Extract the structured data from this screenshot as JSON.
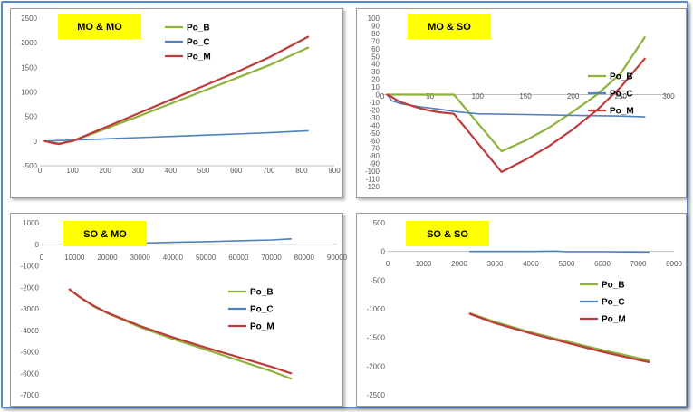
{
  "colors": {
    "Po_B": "#8db33d",
    "Po_C": "#4f81bd",
    "Po_M": "#be3b3b",
    "frame": "#5a8ac8",
    "title_bg": "#ffff00"
  },
  "chart_data": [
    {
      "type": "line",
      "title": "MO & MO",
      "xlim": [
        0,
        900
      ],
      "ylim": [
        -500,
        2500
      ],
      "xticks": [
        0,
        100,
        200,
        300,
        400,
        500,
        600,
        700,
        800,
        900
      ],
      "yticks": [
        -500,
        0,
        500,
        1000,
        1500,
        2000,
        2500
      ],
      "xtick_labels": [
        "0",
        "100",
        "200",
        "300",
        "400",
        "500",
        "600",
        "700",
        "800",
        "900"
      ],
      "ytick_labels": [
        "-500",
        "0",
        "500",
        "1000",
        "1500",
        "2000",
        "2500"
      ],
      "legend": [
        "Po_B",
        "Po_C",
        "Po_M"
      ],
      "series": [
        {
          "name": "Po_B",
          "x": [
            15,
            40,
            60,
            80,
            100,
            200,
            300,
            400,
            500,
            600,
            700,
            820
          ],
          "y": [
            0,
            -30,
            -50,
            -20,
            0,
            250,
            500,
            760,
            1020,
            1280,
            1540,
            1900
          ]
        },
        {
          "name": "Po_C",
          "x": [
            15,
            100,
            200,
            300,
            400,
            500,
            600,
            700,
            820
          ],
          "y": [
            0,
            20,
            45,
            70,
            95,
            120,
            145,
            170,
            210
          ]
        },
        {
          "name": "Po_M",
          "x": [
            15,
            40,
            60,
            80,
            100,
            200,
            300,
            400,
            500,
            600,
            700,
            820
          ],
          "y": [
            0,
            -40,
            -60,
            -25,
            0,
            280,
            560,
            840,
            1120,
            1400,
            1700,
            2120
          ]
        }
      ]
    },
    {
      "type": "line",
      "title": "MO & SO",
      "xlim": [
        0,
        300
      ],
      "ylim": [
        -120,
        100
      ],
      "xticks": [
        0,
        50,
        100,
        150,
        200,
        250,
        300
      ],
      "yticks": [
        -120,
        -110,
        -100,
        -90,
        -80,
        -70,
        -60,
        -50,
        -40,
        -30,
        -20,
        -10,
        0,
        10,
        20,
        30,
        40,
        50,
        60,
        70,
        80,
        90,
        100
      ],
      "xtick_labels": [
        "0",
        "50",
        "100",
        "150",
        "200",
        "250",
        "300"
      ],
      "ytick_labels": [
        "-120",
        "-110",
        "-100",
        "-90",
        "-80",
        "-70",
        "-60",
        "-50",
        "-40",
        "-30",
        "-20",
        "-10",
        "0",
        "10",
        "20",
        "30",
        "40",
        "50",
        "60",
        "70",
        "80",
        "90",
        "100"
      ],
      "legend": [
        "Po_B",
        "Po_C",
        "Po_M"
      ],
      "series": [
        {
          "name": "Po_B",
          "x": [
            5,
            20,
            40,
            60,
            75,
            100,
            125,
            150,
            175,
            200,
            225,
            250,
            275
          ],
          "y": [
            0,
            0,
            0,
            0,
            0,
            -37,
            -74,
            -60,
            -43,
            -22,
            0,
            28,
            75
          ]
        },
        {
          "name": "Po_C",
          "x": [
            5,
            10,
            20,
            40,
            60,
            75,
            100,
            150,
            200,
            250,
            275
          ],
          "y": [
            0,
            -8,
            -12,
            -16,
            -19,
            -22,
            -25,
            -26,
            -27,
            -28,
            -29
          ]
        },
        {
          "name": "Po_M",
          "x": [
            5,
            10,
            15,
            20,
            30,
            40,
            50,
            60,
            75,
            100,
            125,
            150,
            175,
            200,
            225,
            250,
            275
          ],
          "y": [
            0,
            -3,
            -7,
            -10,
            -14,
            -18,
            -21,
            -23,
            -25,
            -63,
            -101,
            -85,
            -67,
            -45,
            -20,
            10,
            47
          ]
        }
      ]
    },
    {
      "type": "line",
      "title": "SO & MO",
      "xlim": [
        0,
        90000
      ],
      "ylim": [
        -7000,
        1000
      ],
      "xticks": [
        0,
        10000,
        20000,
        30000,
        40000,
        50000,
        60000,
        70000,
        80000,
        90000
      ],
      "yticks": [
        -7000,
        -6000,
        -5000,
        -4000,
        -3000,
        -2000,
        -1000,
        0,
        1000
      ],
      "xtick_labels": [
        "0",
        "10000",
        "20000",
        "30000",
        "40000",
        "50000",
        "60000",
        "70000",
        "80000",
        "90000"
      ],
      "ytick_labels": [
        "-7000",
        "-6000",
        "-5000",
        "-4000",
        "-3000",
        "-2000",
        "-1000",
        "0",
        "1000"
      ],
      "legend": [
        "Po_B",
        "Po_C",
        "Po_M"
      ],
      "series": [
        {
          "name": "Po_B",
          "x": [
            8500,
            12000,
            16000,
            20000,
            30000,
            40000,
            50000,
            60000,
            70000,
            76000
          ],
          "y": [
            -2100,
            -2500,
            -2900,
            -3200,
            -3850,
            -4400,
            -4900,
            -5400,
            -5900,
            -6250
          ]
        },
        {
          "name": "Po_C",
          "x": [
            8500,
            20000,
            30000,
            40000,
            50000,
            60000,
            70000,
            76000
          ],
          "y": [
            0,
            20,
            50,
            90,
            120,
            160,
            200,
            250
          ]
        },
        {
          "name": "Po_M",
          "x": [
            8500,
            12000,
            16000,
            20000,
            30000,
            40000,
            50000,
            60000,
            70000,
            76000
          ],
          "y": [
            -2100,
            -2500,
            -2880,
            -3180,
            -3800,
            -4330,
            -4800,
            -5250,
            -5700,
            -6000
          ]
        }
      ]
    },
    {
      "type": "line",
      "title": "SO & SO",
      "xlim": [
        0,
        8000
      ],
      "ylim": [
        -2500,
        500
      ],
      "xticks": [
        0,
        1000,
        2000,
        3000,
        4000,
        5000,
        6000,
        7000,
        8000
      ],
      "yticks": [
        -2500,
        -2000,
        -1500,
        -1000,
        -500,
        0,
        500
      ],
      "xtick_labels": [
        "0",
        "1000",
        "2000",
        "3000",
        "4000",
        "5000",
        "6000",
        "7000",
        "8000"
      ],
      "ytick_labels": [
        "-2500",
        "-2000",
        "-1500",
        "-1000",
        "-500",
        "0",
        "500"
      ],
      "legend": [
        "Po_B",
        "Po_C",
        "Po_M"
      ],
      "series": [
        {
          "name": "Po_B",
          "x": [
            2300,
            3000,
            4000,
            5000,
            6000,
            7000,
            7300
          ],
          "y": [
            -1080,
            -1230,
            -1410,
            -1570,
            -1720,
            -1860,
            -1900
          ]
        },
        {
          "name": "Po_C",
          "x": [
            2300,
            3000,
            4000,
            4700,
            5000,
            6000,
            7000,
            7300
          ],
          "y": [
            0,
            0,
            0,
            5,
            -5,
            -5,
            -10,
            -10
          ]
        },
        {
          "name": "Po_M",
          "x": [
            2300,
            3000,
            4000,
            5000,
            6000,
            7000,
            7300
          ],
          "y": [
            -1090,
            -1250,
            -1430,
            -1590,
            -1750,
            -1890,
            -1930
          ]
        }
      ]
    }
  ]
}
